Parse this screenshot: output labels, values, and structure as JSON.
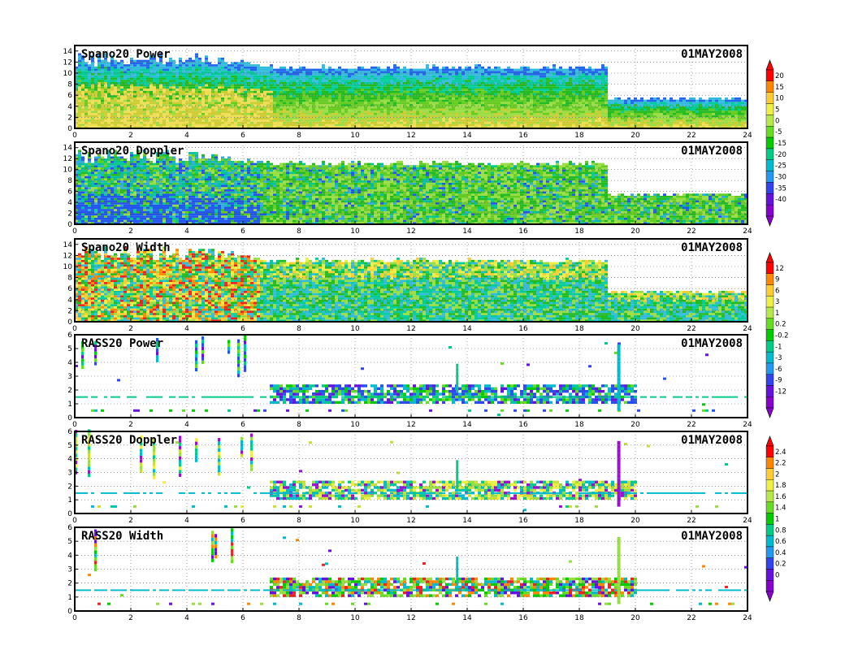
{
  "figure": {
    "x_ticks": [
      "0",
      "2",
      "4",
      "6",
      "8",
      "10",
      "12",
      "14",
      "16",
      "18",
      "20",
      "22",
      "24"
    ]
  },
  "colorbars": [
    {
      "name": "power-colorbar",
      "ticks": [
        "20",
        "15",
        "10",
        "5",
        "0",
        "-5",
        "-15",
        "-20",
        "-25",
        "-30",
        "-35",
        "-40"
      ],
      "colors": [
        "#ff0000",
        "#ff8800",
        "#ffcc33",
        "#eeee44",
        "#b7e84a",
        "#66dd22",
        "#00cc00",
        "#00cc88",
        "#00bbcc",
        "#2299ee",
        "#3344ee",
        "#6611dd",
        "#8800cc"
      ]
    },
    {
      "name": "width-colorbar",
      "ticks": [
        "12",
        "9",
        "6",
        "3",
        "1",
        "0.2",
        "-0.2",
        "-1",
        "-3",
        "-6",
        "-9",
        "-12"
      ],
      "colors": [
        "#ff0000",
        "#ff8800",
        "#ffcc33",
        "#eeee44",
        "#b7e84a",
        "#66dd22",
        "#00cc00",
        "#00cc88",
        "#00bbcc",
        "#2299ee",
        "#3344ee",
        "#6611dd",
        "#8800cc"
      ]
    },
    {
      "name": "rass-colorbar",
      "ticks": [
        "2.4",
        "2.2",
        "2",
        "1.8",
        "1.6",
        "1.4",
        "1",
        "0.8",
        "0.6",
        "0.4",
        "0.2",
        "0"
      ],
      "colors": [
        "#ff0000",
        "#ff8800",
        "#ffcc33",
        "#eeee44",
        "#b7e84a",
        "#66dd22",
        "#00cc00",
        "#00cc88",
        "#00bbcc",
        "#2299ee",
        "#3344ee",
        "#6611dd",
        "#8800cc"
      ]
    }
  ],
  "chart_data": [
    {
      "type": "heatmap",
      "title": "Spano20 Power",
      "date": "01MAY2008",
      "x_range": [
        0,
        24
      ],
      "y_range": [
        0,
        15
      ],
      "y_ticks": [
        "0",
        "2",
        "4",
        "6",
        "8",
        "10",
        "12",
        "14"
      ],
      "grid": true,
      "colors": [
        "#eedd55",
        "#cccc33",
        "#99dd44",
        "#66cc22",
        "#22bb22",
        "#00cc99",
        "#33bbdd",
        "#2266ee"
      ]
    },
    {
      "type": "heatmap",
      "title": "Spano20 Doppler",
      "date": "01MAY2008",
      "x_range": [
        0,
        24
      ],
      "y_range": [
        0,
        15
      ],
      "y_ticks": [
        "0",
        "2",
        "4",
        "6",
        "8",
        "10",
        "12",
        "14"
      ],
      "grid": true,
      "colors": [
        "#99dd44",
        "#66cc22",
        "#22bb22",
        "#00cc88",
        "#00bbaa",
        "#33aadd",
        "#2255ee"
      ]
    },
    {
      "type": "heatmap",
      "title": "Spano20 Width",
      "date": "01MAY2008",
      "x_range": [
        0,
        24
      ],
      "y_range": [
        0,
        15
      ],
      "y_ticks": [
        "0",
        "2",
        "4",
        "6",
        "8",
        "10",
        "12",
        "14"
      ],
      "grid": true,
      "colors": [
        "#ee2222",
        "#ff8800",
        "#ffcc33",
        "#eeee44",
        "#99dd44",
        "#22bb22",
        "#00cc99",
        "#33bbdd"
      ]
    },
    {
      "type": "heatmap",
      "title": "RASS20 Power",
      "date": "01MAY2008",
      "x_range": [
        0,
        24
      ],
      "y_range": [
        0,
        6
      ],
      "y_ticks": [
        "0",
        "1",
        "2",
        "3",
        "4",
        "5",
        "6"
      ],
      "grid": true,
      "colors": [
        "#2255ee",
        "#3344ee",
        "#00bbcc",
        "#00cc88",
        "#00cc00",
        "#66dd22",
        "#6611dd"
      ]
    },
    {
      "type": "heatmap",
      "title": "RASS20 Doppler",
      "date": "01MAY2008",
      "x_range": [
        0,
        24
      ],
      "y_range": [
        0,
        6
      ],
      "y_ticks": [
        "0",
        "1",
        "2",
        "3",
        "4",
        "5",
        "6"
      ],
      "grid": true,
      "colors": [
        "#eeee44",
        "#ccdd33",
        "#99dd44",
        "#00cc88",
        "#00bbcc",
        "#9911cc"
      ]
    },
    {
      "type": "heatmap",
      "title": "RASS20 Width",
      "date": "01MAY2008",
      "x_range": [
        0,
        24
      ],
      "y_range": [
        0,
        6
      ],
      "y_ticks": [
        "0",
        "1",
        "2",
        "3",
        "4",
        "5",
        "6"
      ],
      "grid": true,
      "colors": [
        "#00cc00",
        "#66dd22",
        "#99dd44",
        "#00bbcc",
        "#ee2222",
        "#ff8800",
        "#6611dd"
      ]
    }
  ]
}
